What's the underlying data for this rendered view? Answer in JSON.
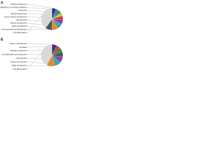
{
  "chart_data": [
    {
      "type": "pie",
      "panel": "A",
      "categories": [
        "Cellular development",
        "Establishment of cellular localization",
        "Cell growth",
        "Muscle development",
        "Immune system development",
        "Neurogenesis",
        "System development",
        "Organ development",
        "Cell organization and biogenesis",
        "Cell differentiation"
      ],
      "values": [
        6,
        5,
        4,
        5,
        6,
        7,
        8,
        9,
        10,
        40
      ],
      "colors": [
        "#2b2b8c",
        "#4b6fd0",
        "#2f8f3a",
        "#c8c83a",
        "#d23c3c",
        "#8b3fa8",
        "#3aa6b0",
        "#e08a2e",
        "#555555",
        "#d9d9d9"
      ]
    },
    {
      "type": "pie",
      "panel": "B",
      "categories": [
        "Organ morphogenesis",
        "Cell death",
        "Skeletal development",
        "Cell organization and biogenesis",
        "Neurogenesis",
        "System development",
        "Organ development",
        "Cell differentiation"
      ],
      "values": [
        7,
        6,
        6,
        9,
        8,
        10,
        12,
        42
      ],
      "colors": [
        "#2b2b8c",
        "#d23c3c",
        "#2f8f3a",
        "#555555",
        "#8b3fa8",
        "#3aa6b0",
        "#e08a2e",
        "#d9d9d9"
      ]
    }
  ]
}
